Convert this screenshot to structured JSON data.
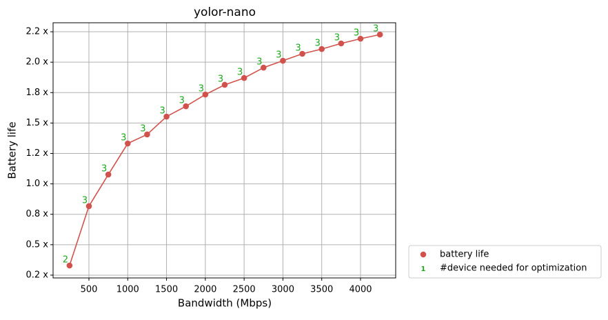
{
  "chart_data": {
    "type": "line",
    "title": "yolor-nano",
    "xlabel": "Bandwidth (Mbps)",
    "ylabel": "Battery life",
    "x": [
      250,
      500,
      750,
      1000,
      1250,
      1500,
      1750,
      2000,
      2250,
      2500,
      2750,
      3000,
      3250,
      3500,
      3750,
      4000,
      4250
    ],
    "series": [
      {
        "name": "battery life",
        "color": "#d1524c",
        "values": [
          0.329,
          0.817,
          1.077,
          1.332,
          1.406,
          1.553,
          1.638,
          1.734,
          1.814,
          1.87,
          1.955,
          2.012,
          2.069,
          2.108,
          2.154,
          2.193,
          2.227
        ]
      }
    ],
    "point_labels": {
      "name": "#device needed for optimization",
      "color": "#1ca81c",
      "marker": "1",
      "values": [
        2,
        3,
        3,
        3,
        3,
        3,
        3,
        3,
        3,
        3,
        3,
        3,
        3,
        3,
        3,
        3,
        3
      ]
    },
    "xlim": [
      38,
      4453
    ],
    "ylim": [
      0.227,
      2.324
    ],
    "xticks": [
      500,
      1000,
      1500,
      2000,
      2500,
      3000,
      3500,
      4000
    ],
    "yticks": [
      {
        "value": 0.25,
        "label": "0.2 x"
      },
      {
        "value": 0.5,
        "label": "0.5 x"
      },
      {
        "value": 0.75,
        "label": "0.8 x"
      },
      {
        "value": 1.0,
        "label": "1.0 x"
      },
      {
        "value": 1.25,
        "label": "1.2 x"
      },
      {
        "value": 1.5,
        "label": "1.5 x"
      },
      {
        "value": 1.75,
        "label": "1.8 x"
      },
      {
        "value": 2.0,
        "label": "2.0 x"
      },
      {
        "value": 2.25,
        "label": "2.2 x"
      }
    ],
    "grid": true,
    "legend": "outside-lower-right"
  }
}
